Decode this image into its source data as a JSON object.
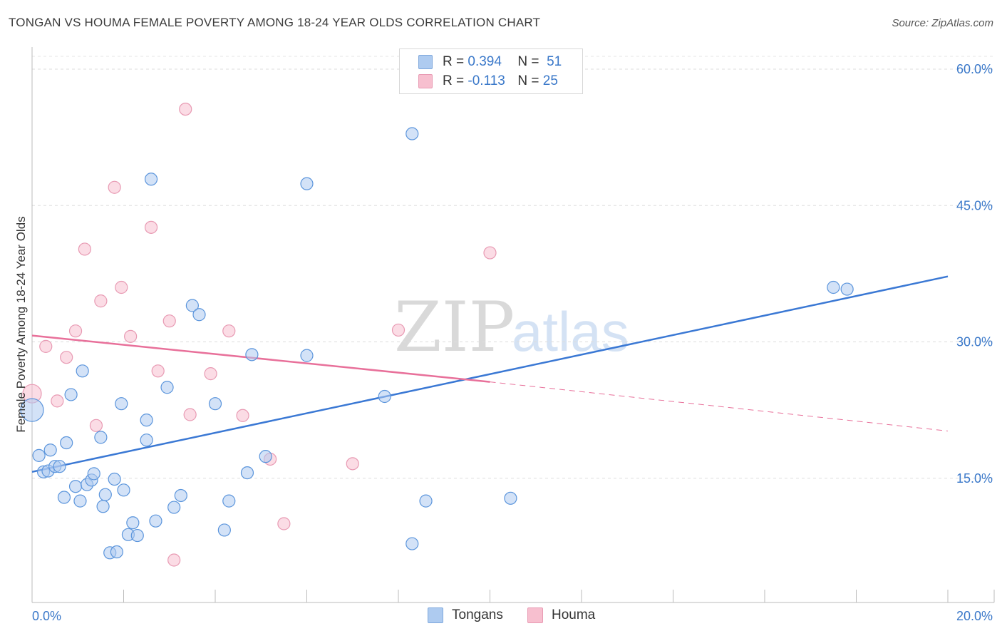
{
  "header": {
    "title": "TONGAN VS HOUMA FEMALE POVERTY AMONG 18-24 YEAR OLDS CORRELATION CHART",
    "source": "Source: ZipAtlas.com"
  },
  "watermark": {
    "zip": "ZIP",
    "atlas": "atlas"
  },
  "legend": {
    "rows": [
      {
        "r_label": "R =",
        "r_value": "0.394",
        "n_label": "N =",
        "n_value": "51",
        "color": "#aecbf0"
      },
      {
        "r_label": "R =",
        "r_value": "-0.113",
        "n_label": "N =",
        "n_value": "25",
        "color": "#f7bfcf"
      }
    ]
  },
  "bottom_legend": {
    "series1": "Tongans",
    "series2": "Houma"
  },
  "chart_data": {
    "type": "scatter",
    "title": "TONGAN VS HOUMA FEMALE POVERTY AMONG 18-24 YEAR OLDS CORRELATION CHART",
    "xlabel": "",
    "ylabel": "Female Poverty Among 18-24 Year Olds",
    "xlim": [
      0,
      20
    ],
    "ylim": [
      0,
      60
    ],
    "x_tick_labels": [
      "0.0%",
      "20.0%"
    ],
    "y_ticks": [
      15,
      30,
      45,
      60
    ],
    "y_tick_labels": [
      "15.0%",
      "30.0%",
      "45.0%",
      "60.0%"
    ],
    "grid": true,
    "legend_position": "top-center",
    "colors": {
      "tongans": "#3a78d4",
      "houma": "#e8709a",
      "tongans_fill": "#aecbf0",
      "houma_fill": "#f7bfcf"
    },
    "series": [
      {
        "name": "Tongans",
        "trend": {
          "x": [
            0,
            20
          ],
          "y": [
            15.7,
            37.2
          ]
        },
        "points": [
          {
            "x": 0.0,
            "y": 22.5,
            "big": true
          },
          {
            "x": 0.15,
            "y": 17.5
          },
          {
            "x": 0.25,
            "y": 15.7
          },
          {
            "x": 0.35,
            "y": 15.8
          },
          {
            "x": 0.4,
            "y": 18.1
          },
          {
            "x": 0.5,
            "y": 16.3
          },
          {
            "x": 0.6,
            "y": 16.3
          },
          {
            "x": 0.7,
            "y": 12.9
          },
          {
            "x": 0.75,
            "y": 18.9
          },
          {
            "x": 0.85,
            "y": 24.2
          },
          {
            "x": 0.95,
            "y": 14.1
          },
          {
            "x": 1.05,
            "y": 12.5
          },
          {
            "x": 1.1,
            "y": 26.8
          },
          {
            "x": 1.2,
            "y": 14.3
          },
          {
            "x": 1.3,
            "y": 14.8
          },
          {
            "x": 1.35,
            "y": 15.5
          },
          {
            "x": 1.5,
            "y": 19.5
          },
          {
            "x": 1.55,
            "y": 11.9
          },
          {
            "x": 1.6,
            "y": 13.2
          },
          {
            "x": 1.7,
            "y": 6.8
          },
          {
            "x": 1.8,
            "y": 14.9
          },
          {
            "x": 1.85,
            "y": 6.9
          },
          {
            "x": 1.95,
            "y": 23.2
          },
          {
            "x": 2.0,
            "y": 13.7
          },
          {
            "x": 2.1,
            "y": 8.8
          },
          {
            "x": 2.2,
            "y": 10.1
          },
          {
            "x": 2.3,
            "y": 8.7
          },
          {
            "x": 2.5,
            "y": 19.2
          },
          {
            "x": 2.5,
            "y": 21.4
          },
          {
            "x": 2.6,
            "y": 47.9
          },
          {
            "x": 2.7,
            "y": 10.3
          },
          {
            "x": 2.95,
            "y": 25.0
          },
          {
            "x": 3.1,
            "y": 11.8
          },
          {
            "x": 3.25,
            "y": 13.1
          },
          {
            "x": 3.5,
            "y": 34.0
          },
          {
            "x": 3.65,
            "y": 33.0
          },
          {
            "x": 4.0,
            "y": 23.2
          },
          {
            "x": 4.2,
            "y": 9.3
          },
          {
            "x": 4.3,
            "y": 12.5
          },
          {
            "x": 4.7,
            "y": 15.6
          },
          {
            "x": 4.8,
            "y": 28.6
          },
          {
            "x": 5.1,
            "y": 17.4
          },
          {
            "x": 6.0,
            "y": 28.5
          },
          {
            "x": 6.0,
            "y": 47.4
          },
          {
            "x": 7.7,
            "y": 24.0
          },
          {
            "x": 8.3,
            "y": 52.9
          },
          {
            "x": 8.3,
            "y": 7.8
          },
          {
            "x": 8.6,
            "y": 12.5
          },
          {
            "x": 10.45,
            "y": 12.8
          },
          {
            "x": 17.5,
            "y": 36.0
          },
          {
            "x": 17.8,
            "y": 35.8
          }
        ]
      },
      {
        "name": "Houma",
        "trend": {
          "x": [
            0,
            10
          ],
          "y": [
            30.7,
            25.6
          ]
        },
        "trend_extension": {
          "x": [
            10,
            20
          ],
          "y": [
            25.6,
            20.2
          ]
        },
        "points": [
          {
            "x": 0.0,
            "y": 24.3,
            "big": true
          },
          {
            "x": 0.3,
            "y": 29.5
          },
          {
            "x": 0.55,
            "y": 23.5
          },
          {
            "x": 0.75,
            "y": 28.3
          },
          {
            "x": 0.95,
            "y": 31.2
          },
          {
            "x": 1.15,
            "y": 40.2
          },
          {
            "x": 1.4,
            "y": 20.8
          },
          {
            "x": 1.5,
            "y": 34.5
          },
          {
            "x": 1.8,
            "y": 47.0
          },
          {
            "x": 1.95,
            "y": 36.0
          },
          {
            "x": 2.15,
            "y": 30.6
          },
          {
            "x": 2.6,
            "y": 42.6
          },
          {
            "x": 2.75,
            "y": 26.8
          },
          {
            "x": 3.0,
            "y": 32.3
          },
          {
            "x": 3.1,
            "y": 6.0
          },
          {
            "x": 3.35,
            "y": 55.6
          },
          {
            "x": 3.45,
            "y": 22.0
          },
          {
            "x": 3.9,
            "y": 26.5
          },
          {
            "x": 4.3,
            "y": 31.2
          },
          {
            "x": 4.6,
            "y": 21.9
          },
          {
            "x": 5.2,
            "y": 17.1
          },
          {
            "x": 5.5,
            "y": 10.0
          },
          {
            "x": 7.0,
            "y": 16.6
          },
          {
            "x": 8.0,
            "y": 31.3
          },
          {
            "x": 10.0,
            "y": 39.8
          }
        ]
      }
    ]
  }
}
